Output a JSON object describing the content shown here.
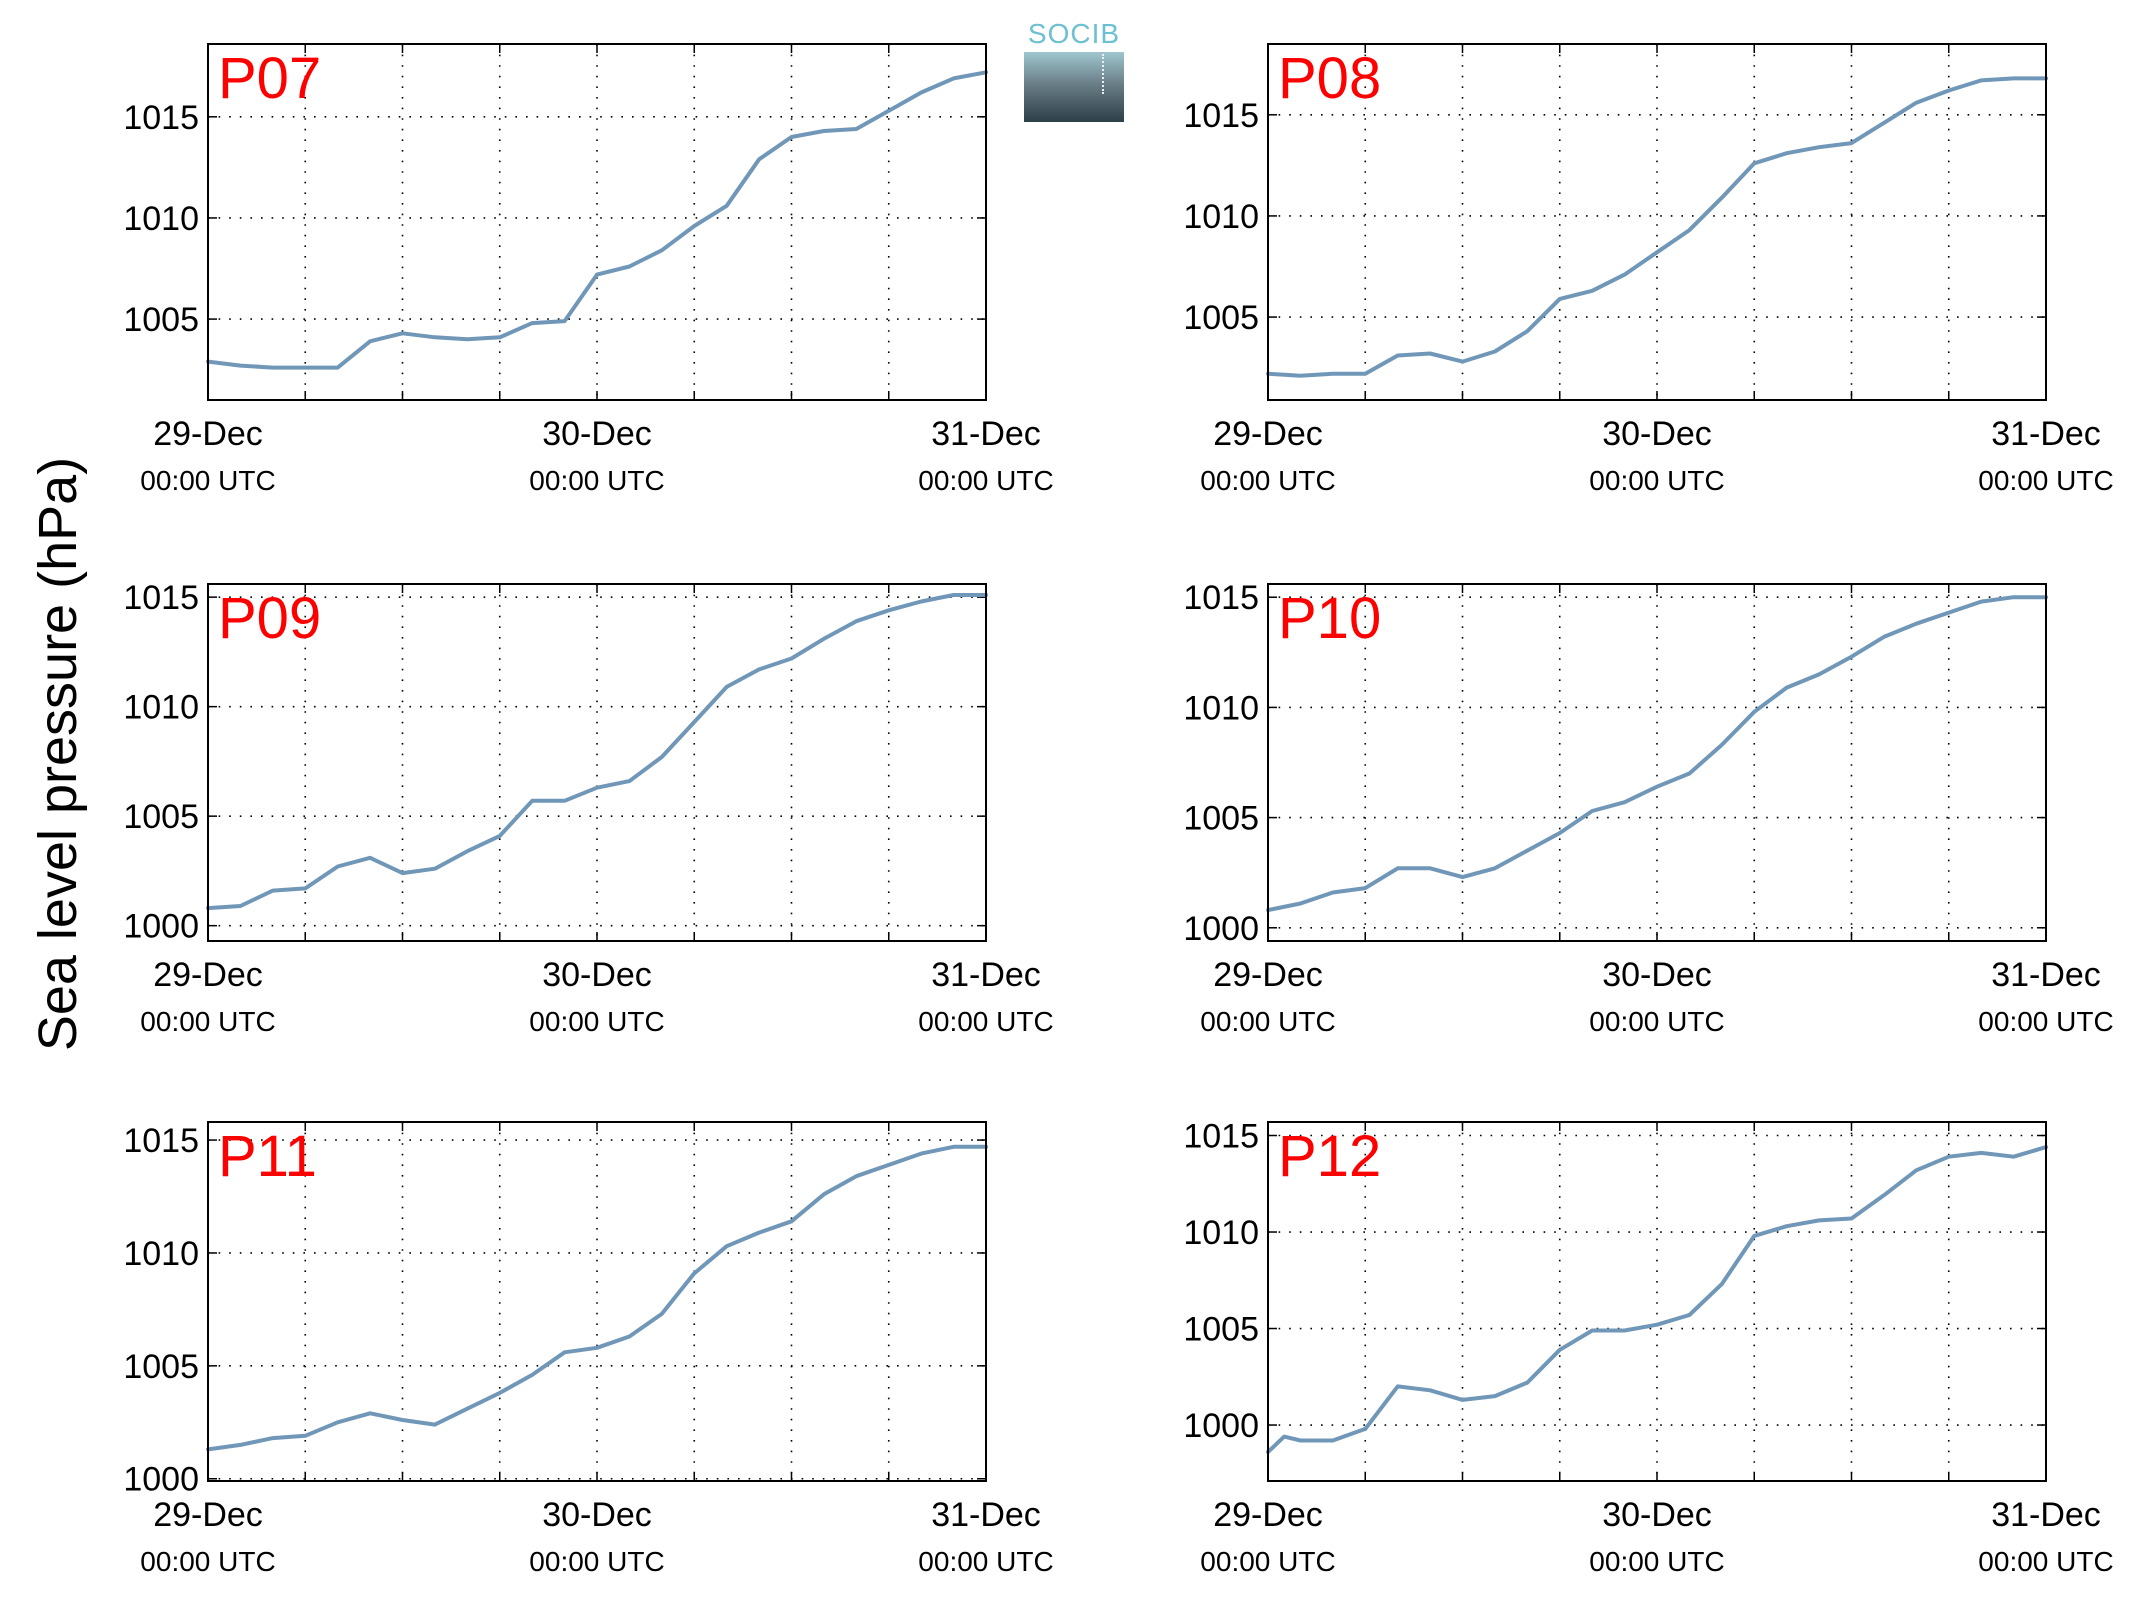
{
  "figure": {
    "ylabel": "Sea level pressure (hPa)",
    "logo_text": "SOCIB",
    "line_color": "#7097b8",
    "label_color": "#ff0000"
  },
  "chart_data": [
    {
      "type": "line",
      "panel_label": "P07",
      "xlabel": "",
      "ylabel": "Sea level pressure (hPa)",
      "ylim": [
        1001,
        1018.6
      ],
      "yticks": [
        1005,
        1010,
        1015
      ],
      "xlim": [
        "29-Dec 00:00",
        "31-Dec 00:00"
      ],
      "xticks": [
        {
          "date": "29-Dec",
          "time": "00:00 UTC"
        },
        {
          "date": "30-Dec",
          "time": "00:00 UTC"
        },
        {
          "date": "31-Dec",
          "time": "00:00 UTC"
        }
      ],
      "grid": true,
      "series": [
        {
          "x_hours": [
            0,
            2,
            4,
            6,
            8,
            10,
            12,
            14,
            16,
            18,
            20,
            22,
            24,
            26,
            28,
            30,
            32,
            34,
            36,
            38,
            40,
            42,
            44,
            46,
            48
          ],
          "values": [
            1002.9,
            1002.7,
            1002.6,
            1002.6,
            1002.6,
            1003.9,
            1004.3,
            1004.1,
            1004.0,
            1004.1,
            1004.8,
            1004.9,
            1007.2,
            1007.6,
            1008.4,
            1009.6,
            1010.6,
            1012.9,
            1014.0,
            1014.3,
            1014.4,
            1015.3,
            1016.2,
            1016.9,
            1017.2
          ]
        }
      ]
    },
    {
      "type": "line",
      "panel_label": "P08",
      "xlabel": "",
      "ylabel": "Sea level pressure (hPa)",
      "ylim": [
        1000.9,
        1018.5
      ],
      "yticks": [
        1005,
        1010,
        1015
      ],
      "xlim": [
        "29-Dec 00:00",
        "31-Dec 00:00"
      ],
      "xticks": [
        {
          "date": "29-Dec",
          "time": "00:00 UTC"
        },
        {
          "date": "30-Dec",
          "time": "00:00 UTC"
        },
        {
          "date": "31-Dec",
          "time": "00:00 UTC"
        }
      ],
      "grid": true,
      "series": [
        {
          "x_hours": [
            0,
            2,
            4,
            6,
            8,
            10,
            12,
            14,
            16,
            18,
            20,
            22,
            24,
            26,
            28,
            30,
            32,
            34,
            36,
            38,
            40,
            42,
            44,
            46,
            48
          ],
          "values": [
            1002.2,
            1002.1,
            1002.2,
            1002.2,
            1003.1,
            1003.2,
            1002.8,
            1003.3,
            1004.3,
            1005.9,
            1006.3,
            1007.1,
            1008.2,
            1009.3,
            1010.9,
            1012.6,
            1013.1,
            1013.4,
            1013.6,
            1014.6,
            1015.6,
            1016.2,
            1016.7,
            1016.8,
            1016.8
          ]
        }
      ]
    },
    {
      "type": "line",
      "panel_label": "P09",
      "xlabel": "",
      "ylabel": "Sea level pressure (hPa)",
      "ylim": [
        999.3,
        1015.6
      ],
      "yticks": [
        1000,
        1005,
        1010,
        1015
      ],
      "xlim": [
        "29-Dec 00:00",
        "31-Dec 00:00"
      ],
      "xticks": [
        {
          "date": "29-Dec",
          "time": "00:00 UTC"
        },
        {
          "date": "30-Dec",
          "time": "00:00 UTC"
        },
        {
          "date": "31-Dec",
          "time": "00:00 UTC"
        }
      ],
      "grid": true,
      "series": [
        {
          "x_hours": [
            0,
            2,
            4,
            6,
            8,
            10,
            12,
            14,
            16,
            18,
            20,
            22,
            24,
            26,
            28,
            30,
            32,
            34,
            36,
            38,
            40,
            42,
            44,
            46,
            48
          ],
          "values": [
            1000.8,
            1000.9,
            1001.6,
            1001.7,
            1002.7,
            1003.1,
            1002.4,
            1002.6,
            1003.4,
            1004.1,
            1005.7,
            1005.7,
            1006.3,
            1006.6,
            1007.7,
            1009.3,
            1010.9,
            1011.7,
            1012.2,
            1013.1,
            1013.9,
            1014.4,
            1014.8,
            1015.1,
            1015.1
          ]
        }
      ]
    },
    {
      "type": "line",
      "panel_label": "P10",
      "xlabel": "",
      "ylabel": "Sea level pressure (hPa)",
      "ylim": [
        999.4,
        1015.6
      ],
      "yticks": [
        1000,
        1005,
        1010,
        1015
      ],
      "xlim": [
        "29-Dec 00:00",
        "31-Dec 00:00"
      ],
      "xticks": [
        {
          "date": "29-Dec",
          "time": "00:00 UTC"
        },
        {
          "date": "30-Dec",
          "time": "00:00 UTC"
        },
        {
          "date": "31-Dec",
          "time": "00:00 UTC"
        }
      ],
      "grid": true,
      "series": [
        {
          "x_hours": [
            0,
            2,
            4,
            6,
            8,
            10,
            12,
            14,
            16,
            18,
            20,
            22,
            24,
            26,
            28,
            30,
            32,
            34,
            36,
            38,
            40,
            42,
            44,
            46,
            48
          ],
          "values": [
            1000.8,
            1001.1,
            1001.6,
            1001.8,
            1002.7,
            1002.7,
            1002.3,
            1002.7,
            1003.5,
            1004.3,
            1005.3,
            1005.7,
            1006.4,
            1007.0,
            1008.3,
            1009.8,
            1010.9,
            1011.5,
            1012.3,
            1013.2,
            1013.8,
            1014.3,
            1014.8,
            1015.0,
            1015.0
          ]
        }
      ]
    },
    {
      "type": "line",
      "panel_label": "P11",
      "xlabel": "",
      "ylabel": "Sea level pressure (hPa)",
      "ylim": [
        999.9,
        1015.8
      ],
      "yticks": [
        1000,
        1005,
        1010,
        1015
      ],
      "xlim": [
        "29-Dec 00:00",
        "31-Dec 00:00"
      ],
      "xticks": [
        {
          "date": "29-Dec",
          "time": "00:00 UTC"
        },
        {
          "date": "30-Dec",
          "time": "00:00 UTC"
        },
        {
          "date": "31-Dec",
          "time": "00:00 UTC"
        }
      ],
      "grid": true,
      "series": [
        {
          "x_hours": [
            0,
            2,
            4,
            6,
            8,
            10,
            12,
            14,
            16,
            18,
            20,
            22,
            24,
            26,
            28,
            30,
            32,
            34,
            36,
            38,
            40,
            42,
            44,
            46,
            48
          ],
          "values": [
            1001.3,
            1001.5,
            1001.8,
            1001.9,
            1002.5,
            1002.9,
            1002.6,
            1002.4,
            1003.1,
            1003.8,
            1004.6,
            1005.6,
            1005.8,
            1006.3,
            1007.3,
            1009.1,
            1010.3,
            1010.9,
            1011.4,
            1012.6,
            1013.4,
            1013.9,
            1014.4,
            1014.7,
            1014.7
          ]
        }
      ]
    },
    {
      "type": "line",
      "panel_label": "P12",
      "xlabel": "",
      "ylabel": "Sea level pressure (hPa)",
      "ylim": [
        997.1,
        1015.7
      ],
      "yticks": [
        1000,
        1005,
        1010,
        1015
      ],
      "xlim": [
        "29-Dec 00:00",
        "31-Dec 00:00"
      ],
      "xticks": [
        {
          "date": "29-Dec",
          "time": "00:00 UTC"
        },
        {
          "date": "30-Dec",
          "time": "00:00 UTC"
        },
        {
          "date": "31-Dec",
          "time": "00:00 UTC"
        }
      ],
      "grid": true,
      "series": [
        {
          "x_hours": [
            0,
            1,
            2,
            4,
            6,
            8,
            10,
            12,
            14,
            16,
            18,
            20,
            22,
            24,
            26,
            28,
            30,
            32,
            34,
            36,
            38,
            40,
            42,
            44,
            46,
            48
          ],
          "values": [
            998.6,
            999.4,
            999.2,
            999.2,
            999.8,
            1002.0,
            1001.8,
            1001.3,
            1001.5,
            1002.2,
            1003.9,
            1004.9,
            1004.9,
            1005.2,
            1005.7,
            1007.3,
            1009.8,
            1010.3,
            1010.6,
            1010.7,
            1011.9,
            1013.2,
            1013.9,
            1014.1,
            1013.9,
            1014.4
          ]
        }
      ]
    }
  ]
}
